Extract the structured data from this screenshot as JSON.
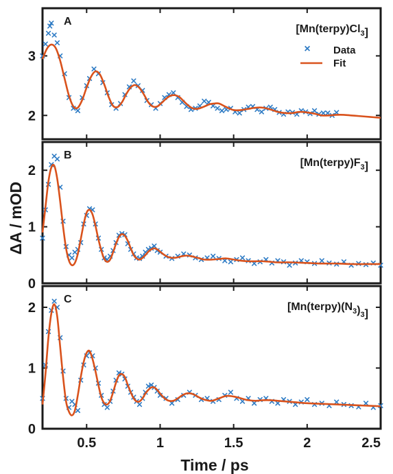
{
  "chart_data": {
    "type": "scatter",
    "colors": {
      "data": "#2e7bc4",
      "fit": "#d9521c",
      "axis": "#1a1a1a"
    },
    "x_tick_labels": [
      "0.5",
      "1",
      "1.5",
      "2",
      "2.5"
    ],
    "x_ticks": [
      0.5,
      1.0,
      1.5,
      2.0,
      2.5
    ],
    "xlabel": "Time / ps",
    "ylabel": "ΔA / mOD",
    "xlim": [
      0.2,
      2.5
    ],
    "legend": {
      "placement": "top-right",
      "data_label": "Data",
      "fit_label": "Fit"
    },
    "panels": [
      {
        "letter": "A",
        "compound": {
          "prefix": "[Mn(terpy)Cl",
          "sub1": "3",
          "mid": "]",
          "sub2": "",
          "suffix": ""
        },
        "ylim": [
          1.6,
          3.8
        ],
        "y_ticks": [
          2,
          3
        ],
        "y_tick_labels": [
          "2",
          "3"
        ],
        "fit": {
          "x": [
            0.2,
            0.23,
            0.26,
            0.29,
            0.32,
            0.35,
            0.38,
            0.41,
            0.44,
            0.47,
            0.5,
            0.53,
            0.56,
            0.59,
            0.62,
            0.65,
            0.68,
            0.71,
            0.74,
            0.77,
            0.8,
            0.83,
            0.86,
            0.89,
            0.92,
            0.95,
            0.98,
            1.01,
            1.04,
            1.07,
            1.1,
            1.13,
            1.16,
            1.19,
            1.22,
            1.25,
            1.28,
            1.31,
            1.34,
            1.37,
            1.4,
            1.45,
            1.5,
            1.55,
            1.6,
            1.65,
            1.7,
            1.75,
            1.8,
            1.85,
            1.9,
            1.95,
            2.0,
            2.05,
            2.1,
            2.15,
            2.2,
            2.25,
            2.3,
            2.35,
            2.4,
            2.45,
            2.5
          ],
          "y": [
            2.95,
            3.12,
            3.19,
            3.13,
            2.92,
            2.62,
            2.33,
            2.15,
            2.13,
            2.26,
            2.47,
            2.65,
            2.74,
            2.69,
            2.52,
            2.31,
            2.16,
            2.14,
            2.22,
            2.36,
            2.47,
            2.51,
            2.46,
            2.35,
            2.22,
            2.15,
            2.15,
            2.21,
            2.28,
            2.33,
            2.34,
            2.31,
            2.24,
            2.17,
            2.12,
            2.11,
            2.13,
            2.16,
            2.19,
            2.2,
            2.2,
            2.14,
            2.09,
            2.09,
            2.11,
            2.13,
            2.13,
            2.1,
            2.06,
            2.04,
            2.04,
            2.06,
            2.05,
            2.03,
            2.0,
            2.0,
            2.01,
            2.01,
            2.0,
            1.99,
            1.98,
            1.97,
            1.96
          ]
        },
        "data_x": [
          0.2,
          0.22,
          0.24,
          0.25,
          0.26,
          0.28,
          0.3,
          0.32,
          0.35,
          0.38,
          0.41,
          0.44,
          0.47,
          0.5,
          0.52,
          0.55,
          0.58,
          0.61,
          0.64,
          0.67,
          0.7,
          0.73,
          0.76,
          0.79,
          0.82,
          0.85,
          0.88,
          0.91,
          0.94,
          0.97,
          1.0,
          1.03,
          1.06,
          1.09,
          1.12,
          1.15,
          1.18,
          1.21,
          1.24,
          1.27,
          1.3,
          1.33,
          1.36,
          1.39,
          1.42,
          1.45,
          1.48,
          1.51,
          1.54,
          1.57,
          1.6,
          1.63,
          1.66,
          1.69,
          1.72,
          1.75,
          1.78,
          1.81,
          1.84,
          1.87,
          1.9,
          1.93,
          1.96,
          1.99,
          2.02,
          2.05,
          2.08,
          2.11,
          2.14,
          2.17,
          2.2
        ],
        "data_y": [
          3.0,
          3.2,
          3.38,
          3.5,
          3.55,
          3.35,
          3.22,
          3.0,
          2.7,
          2.3,
          2.12,
          2.08,
          2.3,
          2.5,
          2.62,
          2.78,
          2.7,
          2.55,
          2.38,
          2.18,
          2.12,
          2.2,
          2.35,
          2.48,
          2.58,
          2.5,
          2.42,
          2.25,
          2.18,
          2.12,
          2.2,
          2.3,
          2.35,
          2.38,
          2.3,
          2.22,
          2.15,
          2.1,
          2.12,
          2.16,
          2.24,
          2.22,
          2.16,
          2.12,
          2.08,
          2.1,
          2.12,
          2.06,
          2.04,
          2.1,
          2.14,
          2.15,
          2.1,
          2.06,
          2.12,
          2.14,
          2.1,
          2.05,
          2.02,
          2.06,
          2.05,
          2.02,
          2.08,
          2.06,
          2.03,
          2.08,
          2.02,
          2.04,
          2.04,
          2.0,
          2.05
        ]
      },
      {
        "letter": "B",
        "compound": {
          "prefix": "[Mn(terpy)F",
          "sub1": "3",
          "mid": "]",
          "sub2": "",
          "suffix": ""
        },
        "ylim": [
          0,
          2.5
        ],
        "y_ticks": [
          0,
          1,
          2
        ],
        "y_tick_labels": [
          "0",
          "1",
          "2"
        ],
        "fit": {
          "x": [
            0.2,
            0.22,
            0.24,
            0.26,
            0.28,
            0.3,
            0.32,
            0.34,
            0.36,
            0.38,
            0.4,
            0.42,
            0.44,
            0.46,
            0.48,
            0.5,
            0.52,
            0.54,
            0.56,
            0.58,
            0.6,
            0.62,
            0.64,
            0.66,
            0.68,
            0.7,
            0.72,
            0.74,
            0.76,
            0.78,
            0.8,
            0.82,
            0.84,
            0.86,
            0.88,
            0.9,
            0.92,
            0.94,
            0.96,
            0.98,
            1.0,
            1.03,
            1.06,
            1.09,
            1.12,
            1.15,
            1.18,
            1.21,
            1.24,
            1.27,
            1.3,
            1.35,
            1.4,
            1.45,
            1.5,
            1.55,
            1.6,
            1.65,
            1.7,
            1.75,
            1.8,
            1.85,
            1.9,
            2.0,
            2.1,
            2.2,
            2.3,
            2.4,
            2.5
          ],
          "y": [
            0.9,
            1.35,
            1.8,
            2.05,
            2.08,
            1.85,
            1.45,
            1.0,
            0.62,
            0.4,
            0.32,
            0.36,
            0.52,
            0.78,
            1.05,
            1.25,
            1.3,
            1.22,
            1.02,
            0.78,
            0.58,
            0.43,
            0.38,
            0.42,
            0.55,
            0.7,
            0.82,
            0.87,
            0.84,
            0.75,
            0.62,
            0.5,
            0.44,
            0.42,
            0.45,
            0.5,
            0.56,
            0.6,
            0.62,
            0.6,
            0.56,
            0.5,
            0.46,
            0.45,
            0.46,
            0.48,
            0.49,
            0.48,
            0.46,
            0.44,
            0.42,
            0.42,
            0.43,
            0.44,
            0.42,
            0.4,
            0.39,
            0.39,
            0.39,
            0.38,
            0.37,
            0.37,
            0.37,
            0.36,
            0.35,
            0.35,
            0.34,
            0.34,
            0.34
          ]
        },
        "data_x": [
          0.2,
          0.22,
          0.24,
          0.26,
          0.28,
          0.3,
          0.32,
          0.34,
          0.36,
          0.38,
          0.4,
          0.42,
          0.44,
          0.46,
          0.48,
          0.5,
          0.52,
          0.54,
          0.56,
          0.58,
          0.6,
          0.62,
          0.64,
          0.66,
          0.68,
          0.7,
          0.72,
          0.74,
          0.76,
          0.78,
          0.8,
          0.82,
          0.84,
          0.86,
          0.88,
          0.9,
          0.92,
          0.94,
          0.96,
          0.98,
          1.0,
          1.04,
          1.08,
          1.12,
          1.16,
          1.2,
          1.24,
          1.28,
          1.32,
          1.36,
          1.4,
          1.44,
          1.48,
          1.52,
          1.56,
          1.6,
          1.64,
          1.68,
          1.72,
          1.76,
          1.8,
          1.84,
          1.88,
          1.92,
          1.96,
          2.0,
          2.05,
          2.1,
          2.15,
          2.2,
          2.25,
          2.3,
          2.35,
          2.4,
          2.45,
          2.5
        ],
        "data_y": [
          0.8,
          1.3,
          1.75,
          2.1,
          2.25,
          2.2,
          1.7,
          1.1,
          0.65,
          0.5,
          0.45,
          0.55,
          0.6,
          0.72,
          1.05,
          1.2,
          1.32,
          1.3,
          1.05,
          0.8,
          0.6,
          0.45,
          0.42,
          0.48,
          0.58,
          0.72,
          0.85,
          0.88,
          0.86,
          0.7,
          0.6,
          0.52,
          0.45,
          0.44,
          0.48,
          0.55,
          0.6,
          0.62,
          0.66,
          0.58,
          0.55,
          0.48,
          0.44,
          0.48,
          0.52,
          0.5,
          0.45,
          0.42,
          0.45,
          0.48,
          0.44,
          0.4,
          0.38,
          0.42,
          0.45,
          0.4,
          0.35,
          0.38,
          0.42,
          0.36,
          0.4,
          0.38,
          0.32,
          0.36,
          0.4,
          0.38,
          0.35,
          0.4,
          0.36,
          0.34,
          0.38,
          0.32,
          0.35,
          0.33,
          0.36,
          0.32
        ]
      },
      {
        "letter": "C",
        "compound": {
          "prefix": "[Mn(terpy)(N",
          "sub1": "3",
          "mid": ")",
          "sub2": "3",
          "suffix": "]"
        },
        "ylim": [
          0,
          2.35
        ],
        "y_ticks": [
          0,
          1,
          2
        ],
        "y_tick_labels": [
          "0",
          "1",
          "2"
        ],
        "fit": {
          "x": [
            0.2,
            0.22,
            0.24,
            0.26,
            0.28,
            0.3,
            0.32,
            0.34,
            0.36,
            0.38,
            0.4,
            0.42,
            0.44,
            0.46,
            0.48,
            0.5,
            0.52,
            0.54,
            0.56,
            0.58,
            0.6,
            0.62,
            0.64,
            0.66,
            0.68,
            0.7,
            0.72,
            0.74,
            0.76,
            0.78,
            0.8,
            0.82,
            0.84,
            0.86,
            0.88,
            0.9,
            0.92,
            0.94,
            0.96,
            0.98,
            1.0,
            1.03,
            1.06,
            1.09,
            1.12,
            1.15,
            1.18,
            1.21,
            1.24,
            1.27,
            1.3,
            1.35,
            1.4,
            1.45,
            1.5,
            1.55,
            1.6,
            1.65,
            1.7,
            1.75,
            1.8,
            1.9,
            2.0,
            2.1,
            2.2,
            2.3,
            2.4,
            2.5
          ],
          "y": [
            0.4,
            0.9,
            1.5,
            1.9,
            2.05,
            1.85,
            1.35,
            0.85,
            0.45,
            0.28,
            0.22,
            0.3,
            0.55,
            0.85,
            1.1,
            1.25,
            1.28,
            1.15,
            0.95,
            0.72,
            0.52,
            0.42,
            0.4,
            0.46,
            0.6,
            0.76,
            0.88,
            0.9,
            0.85,
            0.72,
            0.6,
            0.5,
            0.45,
            0.45,
            0.5,
            0.58,
            0.64,
            0.68,
            0.68,
            0.64,
            0.58,
            0.5,
            0.46,
            0.46,
            0.5,
            0.55,
            0.58,
            0.58,
            0.55,
            0.51,
            0.48,
            0.46,
            0.5,
            0.54,
            0.53,
            0.5,
            0.47,
            0.46,
            0.47,
            0.47,
            0.46,
            0.44,
            0.42,
            0.41,
            0.4,
            0.39,
            0.38,
            0.37
          ]
        },
        "data_x": [
          0.2,
          0.22,
          0.24,
          0.26,
          0.28,
          0.3,
          0.32,
          0.34,
          0.36,
          0.38,
          0.4,
          0.42,
          0.44,
          0.46,
          0.48,
          0.5,
          0.52,
          0.54,
          0.56,
          0.58,
          0.6,
          0.62,
          0.64,
          0.66,
          0.68,
          0.7,
          0.72,
          0.74,
          0.76,
          0.78,
          0.8,
          0.82,
          0.84,
          0.86,
          0.88,
          0.9,
          0.92,
          0.94,
          0.96,
          0.98,
          1.0,
          1.04,
          1.08,
          1.12,
          1.16,
          1.2,
          1.24,
          1.28,
          1.32,
          1.36,
          1.4,
          1.44,
          1.48,
          1.52,
          1.56,
          1.6,
          1.64,
          1.68,
          1.72,
          1.76,
          1.8,
          1.84,
          1.88,
          1.92,
          1.96,
          2.0,
          2.05,
          2.1,
          2.15,
          2.2,
          2.25,
          2.3,
          2.35,
          2.4,
          2.45,
          2.5
        ],
        "data_y": [
          0.5,
          1.05,
          1.6,
          1.95,
          2.1,
          2.0,
          1.5,
          0.95,
          0.5,
          0.35,
          0.45,
          0.4,
          0.3,
          0.8,
          1.05,
          1.2,
          1.25,
          1.2,
          1.0,
          0.75,
          0.55,
          0.4,
          0.35,
          0.45,
          0.62,
          0.8,
          0.92,
          0.9,
          0.82,
          0.7,
          0.6,
          0.52,
          0.45,
          0.4,
          0.5,
          0.6,
          0.7,
          0.72,
          0.68,
          0.62,
          0.55,
          0.5,
          0.42,
          0.48,
          0.55,
          0.6,
          0.55,
          0.48,
          0.5,
          0.45,
          0.48,
          0.55,
          0.6,
          0.5,
          0.45,
          0.5,
          0.42,
          0.48,
          0.5,
          0.45,
          0.42,
          0.48,
          0.45,
          0.4,
          0.44,
          0.48,
          0.4,
          0.42,
          0.38,
          0.44,
          0.4,
          0.38,
          0.36,
          0.42,
          0.35,
          0.38
        ]
      }
    ]
  }
}
